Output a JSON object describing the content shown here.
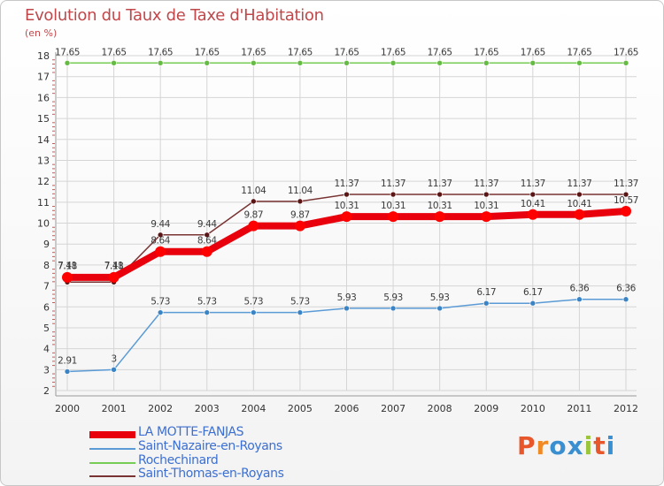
{
  "header": {
    "title": "Evolution du Taux de Taxe d'Habitation",
    "unit": "(en %)"
  },
  "logo": {
    "letters": [
      "P",
      "r",
      "o",
      "x",
      "i",
      "t",
      "i"
    ]
  },
  "colors": {
    "title": "#c0474a",
    "axis_text": "#333333",
    "grid": "#d5d5d5",
    "series": [
      "#e8000c",
      "#5b9bd5",
      "#77cc55",
      "#7a3333"
    ],
    "markers": [
      "#ff0000",
      "#3a83c4",
      "#66bb44",
      "#5a1515"
    ],
    "logo": [
      "#e8572c",
      "#f08a24",
      "#3a8fd0",
      "#3a8fd0",
      "#9bc53d",
      "#e8572c",
      "#3a8fd0"
    ]
  },
  "chart_data": {
    "type": "line",
    "title": "Evolution du Taux de Taxe d'Habitation",
    "ylabel": "(en %)",
    "xlabel": "",
    "ylim": [
      2,
      18
    ],
    "yticks": [
      2,
      3,
      4,
      5,
      6,
      7,
      8,
      9,
      10,
      11,
      12,
      13,
      14,
      15,
      16,
      17,
      18
    ],
    "x": [
      "2000",
      "2001",
      "2002",
      "2003",
      "2004",
      "2005",
      "2006",
      "2007",
      "2008",
      "2009",
      "2010",
      "2011",
      "2012"
    ],
    "grid": true,
    "legend": "bottom-left",
    "series": [
      {
        "name": "LA MOTTE-FANJAS",
        "values": [
          7.41,
          7.41,
          8.64,
          8.64,
          9.87,
          9.87,
          10.31,
          10.31,
          10.31,
          10.31,
          10.41,
          10.41,
          10.57
        ],
        "labels": [
          "7.41",
          "7.41",
          "8.64",
          "8.64",
          "9.87",
          "9.87",
          "10.31",
          "10.31",
          "10.31",
          "10.31",
          "10.41",
          "10.41",
          "10.57"
        ]
      },
      {
        "name": "Saint-Nazaire-en-Royans",
        "values": [
          2.91,
          3.0,
          5.73,
          5.73,
          5.73,
          5.73,
          5.93,
          5.93,
          5.93,
          6.17,
          6.17,
          6.36,
          6.36
        ],
        "labels": [
          "2.91",
          "3",
          "5.73",
          "5.73",
          "5.73",
          "5.73",
          "5.93",
          "5.93",
          "5.93",
          "6.17",
          "6.17",
          "6.36",
          "6.36"
        ]
      },
      {
        "name": "Rochechinard",
        "values": [
          17.65,
          17.65,
          17.65,
          17.65,
          17.65,
          17.65,
          17.65,
          17.65,
          17.65,
          17.65,
          17.65,
          17.65,
          17.65
        ],
        "labels": [
          "17.65",
          "17.65",
          "17.65",
          "17.65",
          "17.65",
          "17.65",
          "17.65",
          "17.65",
          "17.65",
          "17.65",
          "17.65",
          "17.65",
          "17.65"
        ]
      },
      {
        "name": "Saint-Thomas-en-Royans",
        "values": [
          7.18,
          7.18,
          9.44,
          9.44,
          11.04,
          11.04,
          11.37,
          11.37,
          11.37,
          11.37,
          11.37,
          11.37,
          11.37
        ],
        "labels": [
          "7.18",
          "7.18",
          "9.44",
          "9.44",
          "11.04",
          "11.04",
          "11.37",
          "11.37",
          "11.37",
          "11.37",
          "11.37",
          "11.37",
          "11.37"
        ]
      }
    ]
  }
}
